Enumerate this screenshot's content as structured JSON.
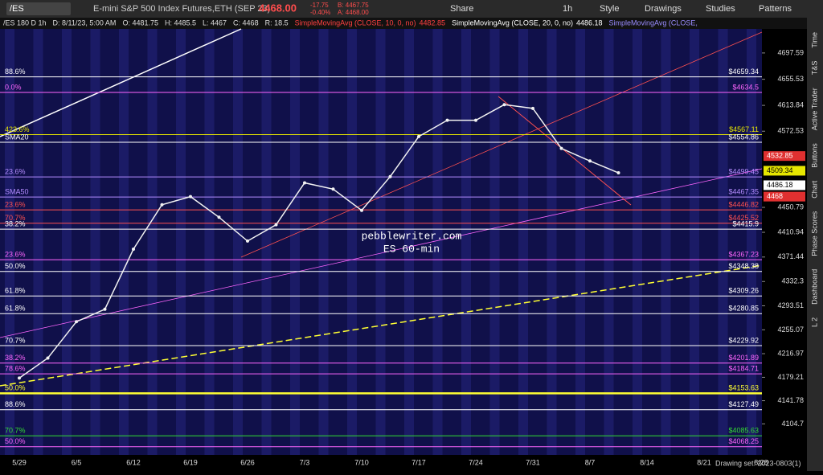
{
  "toolbar": {
    "symbol": "/ES",
    "description": "E-mini S&P 500 Index Futures,ETH (SEP 23)",
    "last": "4468.00",
    "change": "-17.75",
    "change_pct": "-0.40%",
    "bid": "B: 4467.75",
    "ask": "A: 4468.00",
    "buttons": [
      "Share",
      "1h",
      "Style",
      "Drawings",
      "Studies",
      "Patterns"
    ]
  },
  "info_bar": [
    "/ES 180 D 1h",
    "D: 8/11/23, 5:00 AM",
    "O: 4481.75",
    "H: 4485.5",
    "L: 4467",
    "C: 4468",
    "R: 18.5"
  ],
  "studies": [
    {
      "text": "SimpleMovingAvg (CLOSE, 10, 0, no)",
      "value": "4482.85",
      "color": "#ff4040"
    },
    {
      "text": "SimpleMovingAvg (CLOSE, 20, 0, no)",
      "value": "4486.18",
      "color": "#ffffff"
    },
    {
      "text": "SimpleMovingAvg (CLOSE,",
      "value": "",
      "color": "#9a8cff"
    }
  ],
  "sidebar": [
    "Time",
    "T&S",
    "Active Trader",
    "Buttons",
    "Chart",
    "Phase Scores",
    "Dashboard",
    "L 2"
  ],
  "footer": "Drawing set: 2023-0803(1)",
  "chart_data": {
    "type": "line",
    "watermark": [
      "pebblewriter.com",
      "ES 60-min"
    ],
    "categories": [
      "5/29",
      null,
      "6/5",
      null,
      "6/12",
      null,
      "6/19",
      null,
      "6/26",
      null,
      "7/3",
      null,
      "7/10",
      null,
      "7/17",
      null,
      "7/24",
      null,
      "7/31",
      null,
      "8/7",
      null,
      "8/14",
      null,
      "8/21",
      null,
      "8/28"
    ],
    "values": [
      4178,
      4210,
      4268,
      4288,
      4384,
      4455,
      4468,
      4435,
      4397,
      4423,
      4490,
      4480,
      4446,
      4500,
      4564,
      4590,
      4590,
      4615,
      4609,
      4545,
      4525,
      4506,
      null,
      null,
      null,
      null,
      null
    ],
    "color": "#f2f2f2",
    "ylim": [
      4068,
      4736
    ],
    "yticks": [
      4697.59,
      4655.53,
      4613.84,
      4572.53,
      4450.79,
      4410.94,
      4371.44,
      4332.3,
      4293.51,
      4255.07,
      4216.97,
      4179.21,
      4141.78,
      4104.7
    ],
    "levels": [
      {
        "value": 4659.34,
        "label": "$4659.34",
        "left": "88.6%",
        "color": "#ffffff"
      },
      {
        "value": 4634.5,
        "label": "$4634.5",
        "left": "0.0%",
        "color": "#ff66ff"
      },
      {
        "value": 4567.11,
        "label": "$4567.11",
        "left": "423.6%",
        "color": "#e6e600"
      },
      {
        "value": 4554.86,
        "label": "$4554.86",
        "left": "SMA20",
        "color": "#ffffff"
      },
      {
        "value": 4499.45,
        "label": "$4499.45",
        "left": "23.6%",
        "color": "#b48cff"
      },
      {
        "value": 4467.35,
        "label": "$4467.35",
        "left": "SMA50",
        "color": "#b48cff"
      },
      {
        "value": 4446.82,
        "label": "$4446.82",
        "left": "23.6%",
        "color": "#ff5050"
      },
      {
        "value": 4425.52,
        "label": "$4425.52",
        "left": "70.7%",
        "color": "#ff5050"
      },
      {
        "value": 4415.9,
        "label": "$4415.9",
        "left": "38.2%",
        "color": "#ffffff"
      },
      {
        "value": 4367.23,
        "label": "$4367.23",
        "left": "23.6%",
        "color": "#ff66ff"
      },
      {
        "value": 4348.38,
        "label": "$4348.38",
        "left": "50.0%",
        "color": "#ffffff"
      },
      {
        "value": 4309.26,
        "label": "$4309.26",
        "left": "61.8%",
        "color": "#ffffff"
      },
      {
        "value": 4280.85,
        "label": "$4280.85",
        "left": "61.8%",
        "color": "#ffffff"
      },
      {
        "value": 4229.92,
        "label": "$4229.92",
        "left": "70.7%",
        "color": "#ffffff"
      },
      {
        "value": 4201.89,
        "label": "$4201.89",
        "left": "38.2%",
        "color": "#ff66ff"
      },
      {
        "value": 4184.71,
        "label": "$4184.71",
        "left": "78.6%",
        "color": "#ff66ff"
      },
      {
        "value": 4153.63,
        "label": "$4153.63",
        "left": "50.0%",
        "color": "#ffff33"
      },
      {
        "value": 4127.49,
        "label": "$4127.49",
        "left": "88.6%",
        "color": "#ffffff"
      },
      {
        "value": 4085.63,
        "label": "$4085.63",
        "left": "70.7%",
        "color": "#33dd33"
      },
      {
        "value": 4068.25,
        "label": "$4068.25",
        "left": "50.0%",
        "color": "#ff66ff"
      }
    ],
    "price_tags": [
      {
        "value": 4532.85,
        "color": "#e03030"
      },
      {
        "value": 4509.34,
        "color": "#e6e600"
      },
      {
        "value": 4486.18,
        "color": "#ffffff"
      },
      {
        "value": 4468,
        "color": "#e03030"
      }
    ]
  }
}
